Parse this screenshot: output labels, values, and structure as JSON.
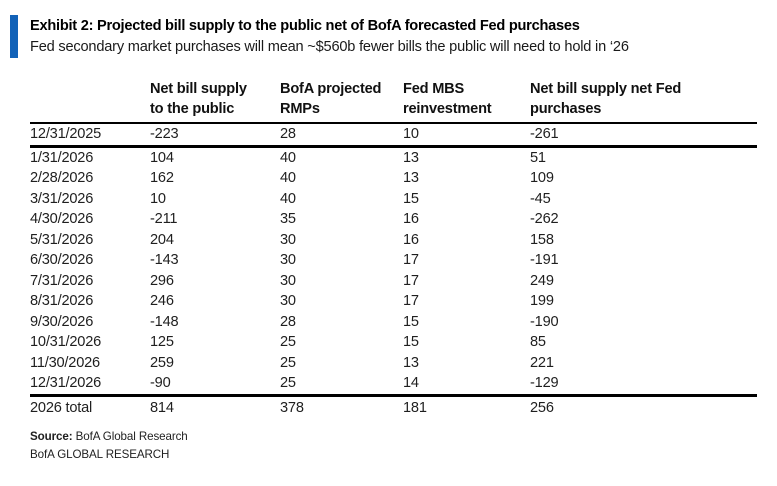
{
  "exhibit": {
    "title": "Exhibit 2: Projected bill supply to the public net of BofA forecasted Fed purchases",
    "subtitle": "Fed secondary market purchases will mean ~$560b fewer bills the public will need to hold in ‘26"
  },
  "chart_data": {
    "type": "table",
    "title": "Exhibit 2: Projected bill supply to the public net of BofA forecasted Fed purchases",
    "subtitle": "Fed secondary market purchases will mean ~$560b fewer bills the public will need to hold in ‘26",
    "columns": [
      "",
      "Net bill supply to the public",
      "BofA projected RMPs",
      "Fed MBS reinvestment",
      "Net bill supply net Fed purchases"
    ],
    "rows": [
      [
        "12/31/2025",
        "-223",
        "28",
        "10",
        "-261"
      ],
      [
        "1/31/2026",
        "104",
        "40",
        "13",
        "51"
      ],
      [
        "2/28/2026",
        "162",
        "40",
        "13",
        "109"
      ],
      [
        "3/31/2026",
        "10",
        "40",
        "15",
        "-45"
      ],
      [
        "4/30/2026",
        "-211",
        "35",
        "16",
        "-262"
      ],
      [
        "5/31/2026",
        "204",
        "30",
        "16",
        "158"
      ],
      [
        "6/30/2026",
        "-143",
        "30",
        "17",
        "-191"
      ],
      [
        "7/31/2026",
        "296",
        "30",
        "17",
        "249"
      ],
      [
        "8/31/2026",
        "246",
        "30",
        "17",
        "199"
      ],
      [
        "9/30/2026",
        "-148",
        "28",
        "15",
        "-190"
      ],
      [
        "10/31/2026",
        "125",
        "25",
        "15",
        "85"
      ],
      [
        "11/30/2026",
        "259",
        "25",
        "13",
        "221"
      ],
      [
        "12/31/2026",
        "-90",
        "25",
        "14",
        "-129"
      ]
    ],
    "total_row": [
      "2026 total",
      "814",
      "378",
      "181",
      "256"
    ],
    "header_labels": {
      "col1_line1": "Net bill supply",
      "col1_line2": "to the public",
      "col2_line1": "BofA projected",
      "col2_line2": "RMPs",
      "col3_line1": "Fed MBS",
      "col3_line2": "reinvestment",
      "col4_line1": "Net bill supply net Fed",
      "col4_line2": "purchases"
    }
  },
  "footer": {
    "source_label": "Source:",
    "source_text": " BofA Global Research",
    "brand": "BofA GLOBAL RESEARCH"
  },
  "colors": {
    "accent_bar": "#1262b8",
    "text": "#1a1a1a",
    "rule": "#000000",
    "background": "#ffffff"
  }
}
